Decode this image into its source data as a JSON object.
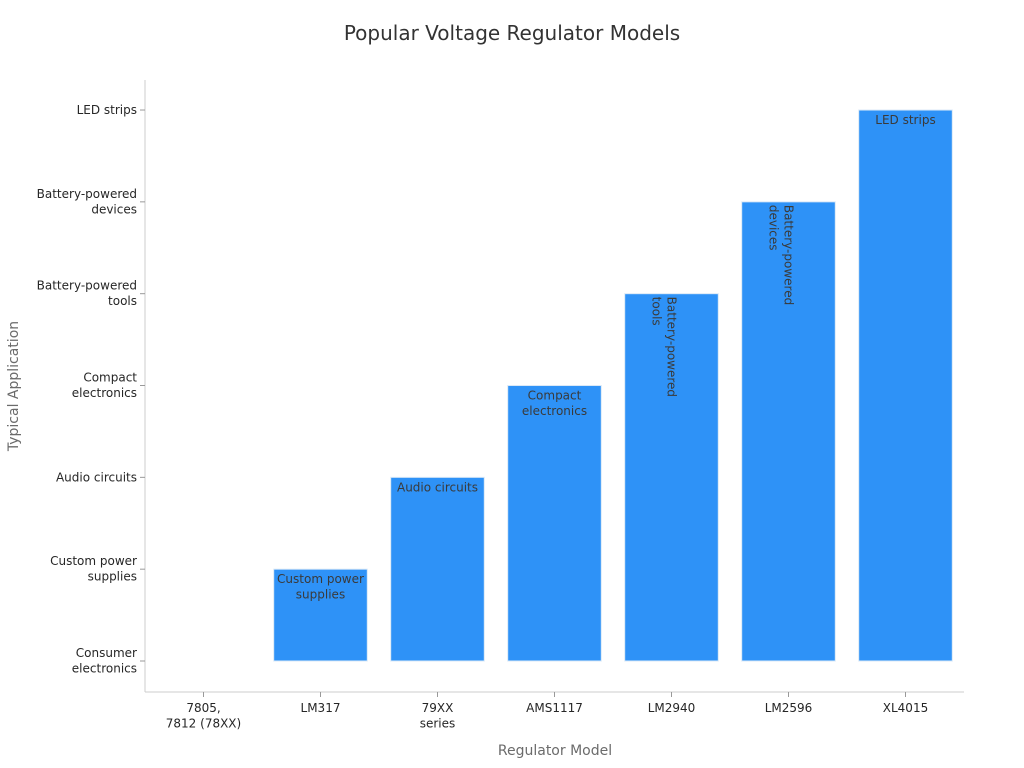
{
  "chart_data": {
    "type": "bar",
    "title": "Popular Voltage Regulator Models",
    "xlabel": "Regulator Model",
    "ylabel": "Typical Application",
    "categories": [
      "7805, 7812 (78XX)",
      "LM317",
      "79XX series",
      "AMS1117",
      "LM2940",
      "LM2596",
      "XL4015"
    ],
    "y_categories": [
      "Consumer electronics",
      "Custom power supplies",
      "Audio circuits",
      "Compact electronics",
      "Battery-powered tools",
      "Battery-powered devices",
      "LED strips"
    ],
    "values": [
      "Consumer electronics",
      "Custom power supplies",
      "Audio circuits",
      "Compact electronics",
      "Battery-powered tools",
      "Battery-powered devices",
      "LED strips"
    ],
    "value_indices": [
      0,
      1,
      2,
      3,
      4,
      5,
      6
    ],
    "bar_color": "#2e92f7",
    "grid": false,
    "legend": "none"
  }
}
